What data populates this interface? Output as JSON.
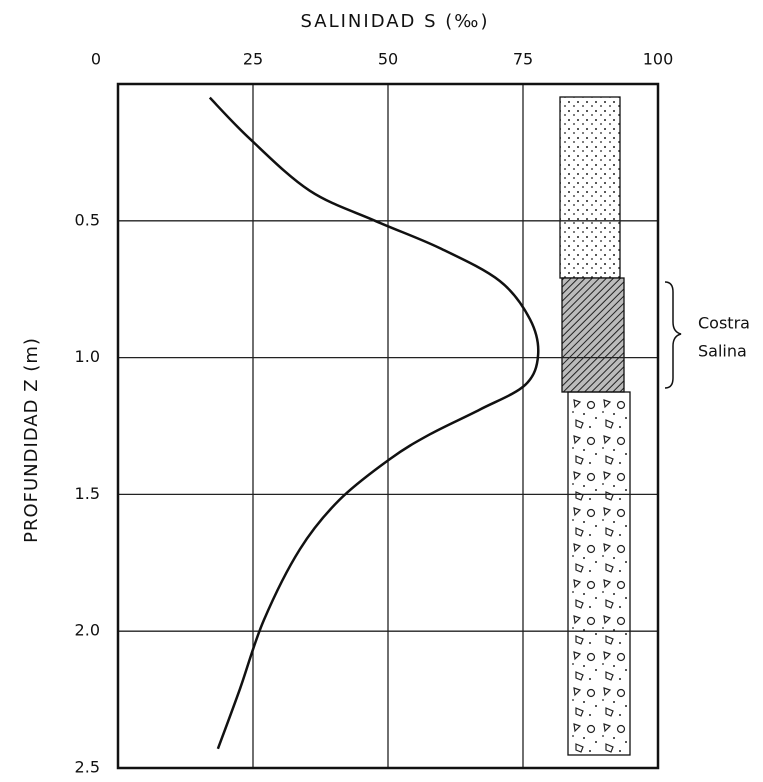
{
  "chart_data": {
    "type": "line",
    "title": "SALINIDAD  S  (‰)",
    "y_label": "PROFUNDIDAD  Z  (m)",
    "annotation": [
      "Costra",
      "Salina"
    ],
    "xlim": [
      0,
      100
    ],
    "xticks": [
      0,
      25,
      50,
      75,
      100
    ],
    "ylim": [
      0,
      2.5
    ],
    "yticks": [
      0.5,
      {
        "value": 1,
        "label": "1.0"
      },
      1.5,
      {
        "value": 2,
        "label": "2.0"
      },
      2.5
    ],
    "y_inverted": true,
    "grid": true,
    "series": [
      {
        "color": "#111",
        "x": [
          17,
          24.4,
          35.5,
          47.6,
          59.6,
          70.7,
          76.3,
          77.8,
          75.4,
          67,
          57.8,
          50.4,
          41,
          33.7,
          27,
          22.6,
          18.5
        ],
        "values": [
          0.05,
          0.2,
          0.39,
          0.5,
          0.6,
          0.72,
          0.86,
          0.99,
          1.1,
          1.19,
          1.28,
          1.37,
          1.52,
          1.7,
          1.96,
          2.21,
          2.43
        ]
      }
    ]
  }
}
